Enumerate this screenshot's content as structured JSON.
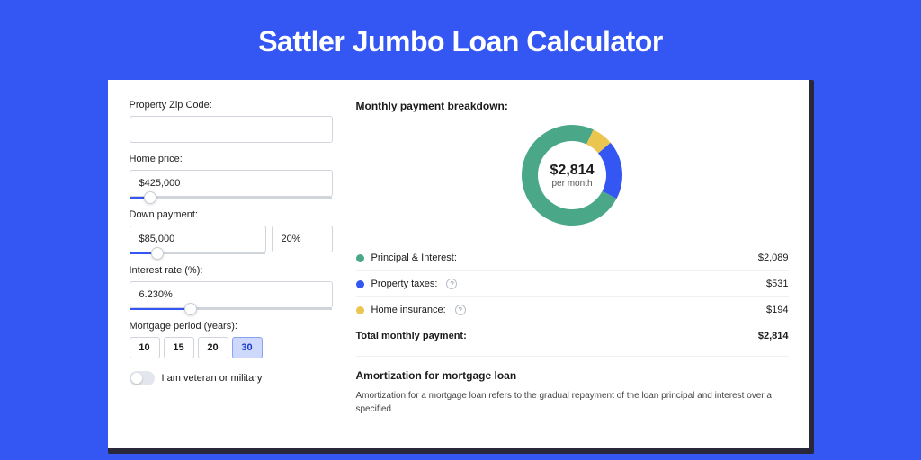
{
  "page": {
    "title": "Sattler Jumbo Loan Calculator",
    "background_color": "#3456f2",
    "card_shadow_color": "#28283a",
    "card_background": "#ffffff"
  },
  "form": {
    "zip": {
      "label": "Property Zip Code:",
      "value": ""
    },
    "home_price": {
      "label": "Home price:",
      "value": "$425,000",
      "slider_pct": 10
    },
    "down_payment": {
      "label": "Down payment:",
      "amount": "$85,000",
      "percent": "20%",
      "slider_pct": 20
    },
    "interest_rate": {
      "label": "Interest rate (%):",
      "value": "6.230%",
      "slider_pct": 30
    },
    "mortgage_period": {
      "label": "Mortgage period (years):",
      "options": [
        "10",
        "15",
        "20",
        "30"
      ],
      "selected": "30"
    },
    "veteran": {
      "label": "I am veteran or military",
      "checked": false
    }
  },
  "breakdown": {
    "title": "Monthly payment breakdown:",
    "donut": {
      "type": "pie",
      "total_amount": "$2,814",
      "sub": "per month",
      "slices": [
        {
          "key": "principal_interest",
          "value": 2089,
          "pct": 74.2,
          "color": "#4aa888"
        },
        {
          "key": "property_taxes",
          "value": 531,
          "pct": 18.9,
          "color": "#3456f2"
        },
        {
          "key": "home_insurance",
          "value": 194,
          "pct": 6.9,
          "color": "#eac54f"
        }
      ],
      "thickness": 18,
      "background": "#ffffff"
    },
    "rows": [
      {
        "label": "Principal & Interest:",
        "value": "$2,089",
        "dot_color": "#4aa888",
        "help": false
      },
      {
        "label": "Property taxes:",
        "value": "$531",
        "dot_color": "#3456f2",
        "help": true
      },
      {
        "label": "Home insurance:",
        "value": "$194",
        "dot_color": "#eac54f",
        "help": true
      }
    ],
    "total": {
      "label": "Total monthly payment:",
      "value": "$2,814"
    }
  },
  "amortization": {
    "title": "Amortization for mortgage loan",
    "text": "Amortization for a mortgage loan refers to the gradual repayment of the loan principal and interest over a specified"
  }
}
